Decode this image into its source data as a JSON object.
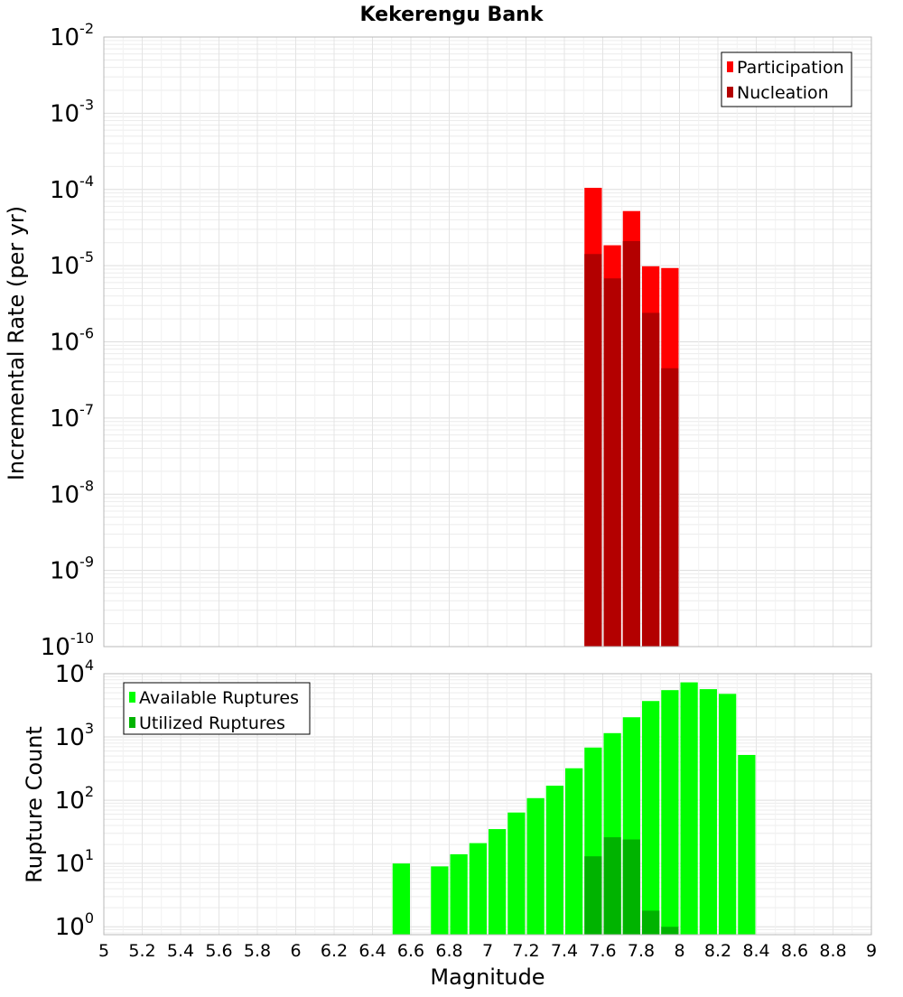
{
  "chart_data": [
    {
      "type": "bar",
      "title": "Kekerengu Bank",
      "ylabel": "Incremental Rate (per yr)",
      "yscale": "log",
      "ylim": [
        1e-10,
        0.01
      ],
      "xlim": [
        5,
        9
      ],
      "grid": true,
      "legend_position": "top-right",
      "y_tick_exponents": [
        "-10",
        "-9",
        "-8",
        "-7",
        "-6",
        "-5",
        "-4",
        "-3",
        "-2"
      ],
      "y_tick_base": "10",
      "bar_width": 0.1,
      "series": [
        {
          "name": "Participation",
          "color": "#ff0000",
          "x": [
            7.55,
            7.65,
            7.75,
            7.85,
            7.95
          ],
          "values": [
            0.000105,
            1.85e-05,
            5.2e-05,
            9.8e-06,
            9.3e-06
          ]
        },
        {
          "name": "Nucleation",
          "color": "#b30000",
          "x": [
            7.55,
            7.65,
            7.75,
            7.85,
            7.95
          ],
          "values": [
            1.42e-05,
            6.8e-06,
            2.1e-05,
            2.4e-06,
            4.5e-07
          ]
        }
      ]
    },
    {
      "type": "bar",
      "title": "",
      "xlabel": "Magnitude",
      "ylabel": "Rupture Count",
      "yscale": "log",
      "ylim": [
        0.75,
        10000
      ],
      "xlim": [
        5,
        9
      ],
      "grid": true,
      "legend_position": "top-left",
      "x_ticks": [
        "5",
        "5.2",
        "5.4",
        "5.6",
        "5.8",
        "6",
        "6.2",
        "6.4",
        "6.6",
        "6.8",
        "7",
        "7.2",
        "7.4",
        "7.6",
        "7.8",
        "8",
        "8.2",
        "8.4",
        "8.6",
        "8.8",
        "9"
      ],
      "y_tick_exponents": [
        "0",
        "1",
        "2",
        "3",
        "4"
      ],
      "y_tick_base": "10",
      "bar_width": 0.1,
      "series": [
        {
          "name": "Available Ruptures",
          "color": "#00ff00",
          "x": [
            6.55,
            6.75,
            6.85,
            6.95,
            7.05,
            7.15,
            7.25,
            7.35,
            7.45,
            7.55,
            7.65,
            7.75,
            7.85,
            7.95,
            8.05,
            8.15,
            8.25,
            8.35
          ],
          "values": [
            10,
            9,
            14,
            21,
            35,
            64,
            108,
            170,
            320,
            680,
            1150,
            2050,
            3700,
            5500,
            7300,
            5700,
            4800,
            520
          ]
        },
        {
          "name": "Utilized Ruptures",
          "color": "#00b300",
          "x": [
            7.55,
            7.65,
            7.75,
            7.85,
            7.95
          ],
          "values": [
            13,
            26,
            24,
            1.8,
            1
          ]
        }
      ]
    }
  ]
}
